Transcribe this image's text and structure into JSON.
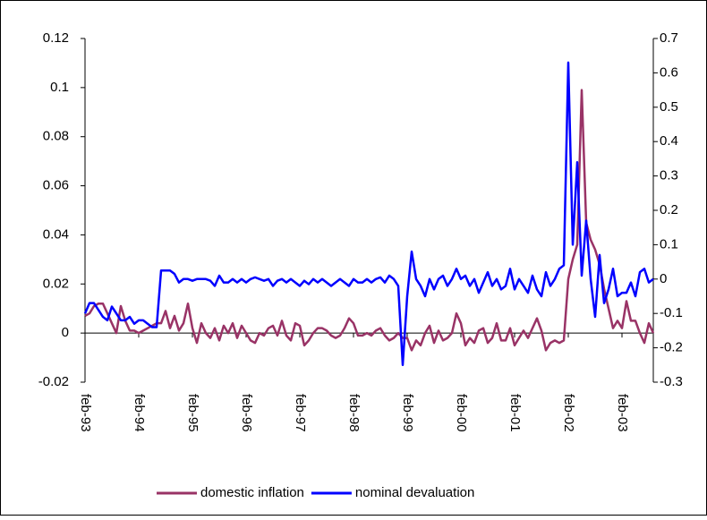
{
  "chart_data": {
    "type": "line",
    "categories": [
      "feb-93",
      null,
      null,
      null,
      null,
      null,
      null,
      null,
      null,
      null,
      null,
      null,
      "feb-94",
      null,
      null,
      null,
      null,
      null,
      null,
      null,
      null,
      null,
      null,
      null,
      "feb-95",
      null,
      null,
      null,
      null,
      null,
      null,
      null,
      null,
      null,
      null,
      null,
      "feb-96",
      null,
      null,
      null,
      null,
      null,
      null,
      null,
      null,
      null,
      null,
      null,
      "feb-97",
      null,
      null,
      null,
      null,
      null,
      null,
      null,
      null,
      null,
      null,
      null,
      "feb-98",
      null,
      null,
      null,
      null,
      null,
      null,
      null,
      null,
      null,
      null,
      null,
      "feb-99",
      null,
      null,
      null,
      null,
      null,
      null,
      null,
      null,
      null,
      null,
      null,
      "feb-00",
      null,
      null,
      null,
      null,
      null,
      null,
      null,
      null,
      null,
      null,
      null,
      "feb-01",
      null,
      null,
      null,
      null,
      null,
      null,
      null,
      null,
      null,
      null,
      null,
      "feb-02",
      null,
      null,
      null,
      null,
      null,
      null,
      null,
      null,
      null,
      null,
      null,
      "feb-03",
      null,
      null,
      null,
      null,
      null,
      null,
      null
    ],
    "series": [
      {
        "name": "domestic inflation",
        "color": "#993366",
        "values": [
          0.007,
          0.008,
          0.011,
          0.012,
          0.012,
          0.008,
          0.004,
          0.0,
          0.011,
          0.005,
          0.001,
          0.001,
          0.0,
          0.001,
          0.002,
          0.003,
          0.004,
          0.004,
          0.009,
          0.002,
          0.007,
          0.001,
          0.004,
          0.012,
          0.002,
          -0.004,
          0.004,
          0.0,
          -0.002,
          0.002,
          -0.003,
          0.003,
          0.0,
          0.004,
          -0.002,
          0.003,
          0.0,
          -0.003,
          -0.004,
          0.0,
          -0.001,
          0.002,
          0.003,
          -0.001,
          0.005,
          -0.001,
          -0.003,
          0.004,
          0.003,
          -0.005,
          -0.003,
          0.0,
          0.002,
          0.002,
          0.001,
          -0.001,
          -0.002,
          -0.001,
          0.002,
          0.006,
          0.004,
          -0.001,
          -0.001,
          0.0,
          -0.001,
          0.001,
          0.002,
          -0.001,
          -0.003,
          -0.002,
          0.0,
          -0.002,
          -0.002,
          -0.007,
          -0.003,
          -0.005,
          0.0,
          0.003,
          -0.004,
          0.001,
          -0.003,
          -0.002,
          0.0,
          0.008,
          0.004,
          -0.005,
          -0.002,
          -0.004,
          0.001,
          0.002,
          -0.004,
          -0.002,
          0.004,
          -0.003,
          -0.003,
          0.002,
          -0.005,
          -0.002,
          0.001,
          -0.002,
          0.002,
          0.006,
          0.001,
          -0.007,
          -0.004,
          -0.003,
          -0.004,
          -0.003,
          0.022,
          0.03,
          0.036,
          0.099,
          0.045,
          0.038,
          0.034,
          0.028,
          0.018,
          0.01,
          0.002,
          0.005,
          0.002,
          0.013,
          0.005,
          0.005,
          0.0,
          -0.004,
          0.004,
          0.0
        ]
      },
      {
        "name": "nominal devaluation",
        "color": "#0000ff",
        "axis": "y2",
        "values": [
          -0.1,
          -0.07,
          -0.07,
          -0.09,
          -0.11,
          -0.12,
          -0.08,
          -0.1,
          -0.12,
          -0.12,
          -0.11,
          -0.13,
          -0.12,
          -0.12,
          -0.13,
          -0.14,
          -0.14,
          0.025,
          0.025,
          0.025,
          0.015,
          -0.01,
          0.0,
          0.0,
          -0.005,
          0.0,
          0.0,
          0.0,
          -0.005,
          -0.02,
          0.01,
          -0.01,
          -0.01,
          0.0,
          -0.01,
          0.0,
          -0.01,
          0.0,
          0.005,
          0.0,
          -0.005,
          0.0,
          -0.02,
          -0.005,
          0.0,
          -0.01,
          0.0,
          -0.01,
          -0.02,
          -0.005,
          -0.015,
          0.0,
          -0.01,
          0.0,
          -0.01,
          -0.02,
          -0.01,
          0.0,
          -0.01,
          -0.02,
          0.0,
          -0.01,
          -0.01,
          0.0,
          -0.01,
          0.0,
          0.005,
          -0.01,
          0.01,
          0.0,
          -0.02,
          -0.25,
          -0.05,
          0.08,
          0.0,
          -0.02,
          -0.05,
          0.0,
          -0.03,
          0.0,
          0.01,
          -0.02,
          0.0,
          0.03,
          0.0,
          0.01,
          -0.02,
          0.0,
          -0.04,
          -0.01,
          0.02,
          -0.02,
          0.0,
          -0.03,
          -0.02,
          0.03,
          -0.03,
          0.0,
          -0.02,
          -0.04,
          0.01,
          -0.03,
          -0.05,
          0.02,
          -0.02,
          0.0,
          0.03,
          0.04,
          0.63,
          0.1,
          0.34,
          0.01,
          0.17,
          0.0,
          -0.11,
          0.07,
          -0.07,
          -0.03,
          0.03,
          -0.05,
          -0.04,
          -0.04,
          -0.01,
          -0.05,
          0.02,
          0.03,
          -0.01,
          0.0
        ]
      }
    ],
    "ylim": [
      -0.02,
      0.12
    ],
    "yticks": [
      -0.02,
      0,
      0.02,
      0.04,
      0.06,
      0.08,
      0.1,
      0.12
    ],
    "y2lim": [
      -0.3,
      0.7
    ],
    "y2ticks": [
      -0.3,
      -0.2,
      -0.1,
      0,
      0.1,
      0.2,
      0.3,
      0.4,
      0.5,
      0.6,
      0.7
    ],
    "legend": "bottom"
  }
}
